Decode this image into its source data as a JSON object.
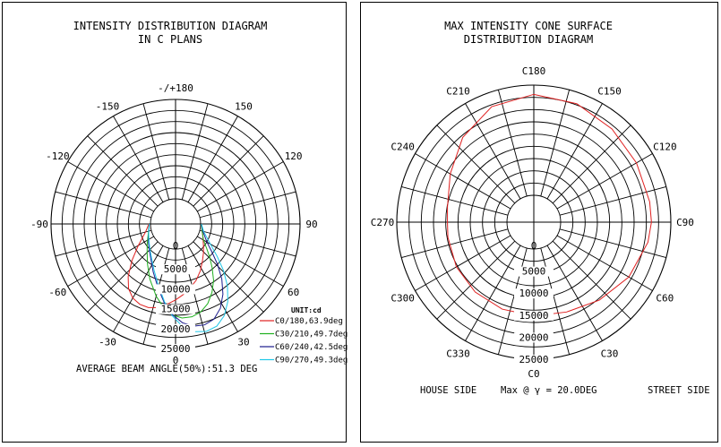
{
  "chart_data": [
    {
      "type": "polar",
      "title_lines": [
        "INTENSITY DISTRIBUTION DIAGRAM",
        "IN C PLANS"
      ],
      "angle_labels": [
        {
          "angle": 180,
          "text": "-/+180"
        },
        {
          "angle": -150,
          "text": "-150"
        },
        {
          "angle": 150,
          "text": "150"
        },
        {
          "angle": -120,
          "text": "-120"
        },
        {
          "angle": 120,
          "text": "120"
        },
        {
          "angle": -90,
          "text": "-90"
        },
        {
          "angle": 90,
          "text": "90"
        },
        {
          "angle": -60,
          "text": "-60"
        },
        {
          "angle": 60,
          "text": "60"
        },
        {
          "angle": -30,
          "text": "-30"
        },
        {
          "angle": 30,
          "text": "30"
        },
        {
          "angle": 0,
          "text": "0"
        }
      ],
      "radial_labels": [
        "0",
        "5000",
        "10000",
        "15000",
        "20000",
        "25000"
      ],
      "radial_values": [
        0,
        5000,
        10000,
        15000,
        20000,
        25000
      ],
      "unit_label": "UNIT:cd",
      "legend": [
        {
          "name": "C0/180,63.9deg",
          "color": "#e02020"
        },
        {
          "name": "C30/210,49.7deg",
          "color": "#20b020"
        },
        {
          "name": "C60/240,42.5deg",
          "color": "#1a1a8c"
        },
        {
          "name": "C90/270,49.3deg",
          "color": "#20c8e8"
        }
      ],
      "series": [
        {
          "name": "C0/180,63.9deg",
          "color": "#e02020",
          "points": [
            [
              -90,
              400
            ],
            [
              -75,
              1500
            ],
            [
              -60,
              4500
            ],
            [
              -50,
              8000
            ],
            [
              -42,
              11500
            ],
            [
              -36,
              13800
            ],
            [
              -30,
              15200
            ],
            [
              -24,
              15800
            ],
            [
              -18,
              15800
            ],
            [
              -12,
              15200
            ],
            [
              -6,
              14000
            ],
            [
              0,
              12800
            ],
            [
              6,
              11600
            ],
            [
              12,
              10400
            ],
            [
              20,
              8800
            ],
            [
              28,
              7000
            ],
            [
              36,
              5200
            ],
            [
              44,
              3800
            ],
            [
              52,
              2600
            ],
            [
              60,
              1700
            ],
            [
              75,
              700
            ],
            [
              90,
              200
            ]
          ]
        },
        {
          "name": "C30/210,49.7deg",
          "color": "#20b020",
          "points": [
            [
              -90,
              300
            ],
            [
              -70,
              1000
            ],
            [
              -55,
              2400
            ],
            [
              -45,
              3800
            ],
            [
              -35,
              6000
            ],
            [
              -25,
              9000
            ],
            [
              -15,
              12500
            ],
            [
              -8,
              15000
            ],
            [
              -2,
              16600
            ],
            [
              4,
              17400
            ],
            [
              10,
              17400
            ],
            [
              16,
              16700
            ],
            [
              22,
              15300
            ],
            [
              28,
              13200
            ],
            [
              34,
              10800
            ],
            [
              40,
              8000
            ],
            [
              46,
              5600
            ],
            [
              52,
              3600
            ],
            [
              60,
              1800
            ],
            [
              75,
              600
            ],
            [
              90,
              200
            ]
          ]
        },
        {
          "name": "C60/240,42.5deg",
          "color": "#1a1a8c",
          "points": [
            [
              -90,
              300
            ],
            [
              -70,
              900
            ],
            [
              -55,
              2000
            ],
            [
              -45,
              3000
            ],
            [
              -35,
              4500
            ],
            [
              -25,
              7000
            ],
            [
              -15,
              10500
            ],
            [
              -8,
              13800
            ],
            [
              -2,
              16500
            ],
            [
              4,
              18600
            ],
            [
              10,
              19800
            ],
            [
              16,
              20100
            ],
            [
              22,
              19500
            ],
            [
              28,
              17700
            ],
            [
              34,
              15000
            ],
            [
              40,
              11800
            ],
            [
              46,
              8400
            ],
            [
              52,
              5400
            ],
            [
              60,
              2800
            ],
            [
              75,
              800
            ],
            [
              90,
              200
            ]
          ]
        },
        {
          "name": "C90/270,49.3deg",
          "color": "#20c8e8",
          "points": [
            [
              -90,
              300
            ],
            [
              -70,
              900
            ],
            [
              -55,
              1800
            ],
            [
              -45,
              2800
            ],
            [
              -35,
              4200
            ],
            [
              -25,
              6500
            ],
            [
              -15,
              10000
            ],
            [
              -8,
              13500
            ],
            [
              -2,
              16800
            ],
            [
              4,
              19600
            ],
            [
              10,
              21200
            ],
            [
              16,
              21800
            ],
            [
              22,
              21400
            ],
            [
              28,
              19800
            ],
            [
              34,
              17200
            ],
            [
              40,
              14000
            ],
            [
              46,
              10400
            ],
            [
              52,
              7000
            ],
            [
              60,
              3800
            ],
            [
              75,
              1000
            ],
            [
              90,
              200
            ]
          ]
        }
      ],
      "footer": "AVERAGE BEAM ANGLE(50%):51.3 DEG"
    },
    {
      "type": "polar",
      "title_lines": [
        "MAX INTENSITY CONE SURFACE",
        "DISTRIBUTION DIAGRAM"
      ],
      "angle_labels": [
        {
          "angle": 180,
          "text": "C180"
        },
        {
          "angle": 150,
          "text": "C150"
        },
        {
          "angle": 120,
          "text": "C120"
        },
        {
          "angle": 90,
          "text": "C90"
        },
        {
          "angle": 60,
          "text": "C60"
        },
        {
          "angle": 30,
          "text": "C30"
        },
        {
          "angle": 0,
          "text": "C0"
        },
        {
          "angle": -30,
          "text": "C330"
        },
        {
          "angle": -60,
          "text": "C300"
        },
        {
          "angle": -90,
          "text": "C270"
        },
        {
          "angle": -120,
          "text": "C240"
        },
        {
          "angle": -150,
          "text": "C210"
        }
      ],
      "radial_labels": [
        "0",
        "5000",
        "10000",
        "15000",
        "20000",
        "25000"
      ],
      "radial_values": [
        0,
        5000,
        10000,
        15000,
        20000,
        25000
      ],
      "series": [
        {
          "name": "Max @ γ = 20.0DEG",
          "color": "#e02020",
          "points": [
            [
              0,
              15200
            ],
            [
              20,
              15600
            ],
            [
              40,
              17000
            ],
            [
              60,
              18800
            ],
            [
              80,
              20200
            ],
            [
              90,
              20600
            ],
            [
              100,
              20600
            ],
            [
              120,
              20800
            ],
            [
              140,
              21500
            ],
            [
              160,
              22500
            ],
            [
              180,
              22900
            ],
            [
              200,
              21800
            ],
            [
              220,
              19000
            ],
            [
              240,
              15800
            ],
            [
              260,
              13800
            ],
            [
              270,
              13500
            ],
            [
              280,
              13700
            ],
            [
              300,
              14200
            ],
            [
              320,
              14600
            ],
            [
              340,
              14900
            ],
            [
              360,
              15200
            ]
          ]
        }
      ],
      "footer_left": "HOUSE SIDE",
      "footer_center": "Max @ γ = 20.0DEG",
      "footer_right": "STREET SIDE"
    }
  ]
}
